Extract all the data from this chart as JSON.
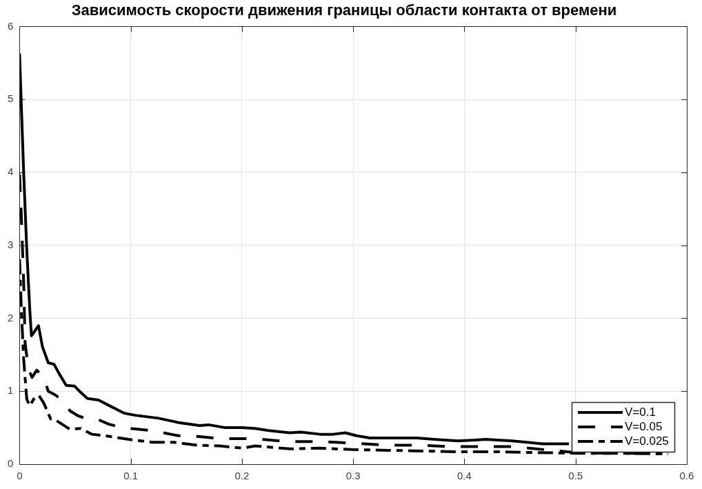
{
  "chart_data": {
    "type": "line",
    "title": "Зависимость скорости движения границы области контакта от времени",
    "xlim": [
      0,
      0.6
    ],
    "xticks": [
      0,
      0.1,
      0.2,
      0.3,
      0.4,
      0.5,
      0.6
    ],
    "ylim": [
      0,
      6
    ],
    "yticks": [
      0,
      1,
      2,
      3,
      4,
      5,
      6
    ],
    "grid": true,
    "legend": "bottom right",
    "series": [
      {
        "name": "V=0.1",
        "color": "#000000",
        "line_style": "solid",
        "x": [
          0,
          0.0037,
          0.0065,
          0.0093,
          0.0107,
          0.0135,
          0.017,
          0.0206,
          0.0258,
          0.031,
          0.036,
          0.042,
          0.0495,
          0.0546,
          0.061,
          0.071,
          0.081,
          0.094,
          0.104,
          0.125,
          0.143,
          0.162,
          0.17,
          0.185,
          0.2,
          0.212,
          0.224,
          0.243,
          0.253,
          0.27,
          0.282,
          0.293,
          0.303,
          0.315,
          0.332,
          0.357,
          0.373,
          0.394,
          0.41,
          0.419,
          0.443,
          0.47,
          0.494
        ],
        "values": [
          5.63,
          4.0,
          2.94,
          2.09,
          1.76,
          1.82,
          1.9,
          1.61,
          1.39,
          1.37,
          1.23,
          1.08,
          1.07,
          0.99,
          0.9,
          0.88,
          0.8,
          0.7,
          0.67,
          0.63,
          0.57,
          0.53,
          0.54,
          0.5,
          0.5,
          0.49,
          0.46,
          0.43,
          0.44,
          0.41,
          0.41,
          0.43,
          0.39,
          0.36,
          0.36,
          0.36,
          0.34,
          0.32,
          0.33,
          0.34,
          0.32,
          0.28,
          0.28
        ]
      },
      {
        "name": "V=0.05",
        "color": "#000000",
        "line_style": "dashed",
        "x": [
          0,
          0.0017,
          0.0037,
          0.005,
          0.008,
          0.0113,
          0.0155,
          0.0217,
          0.0258,
          0.032,
          0.038,
          0.0454,
          0.053,
          0.061,
          0.071,
          0.08,
          0.09,
          0.1,
          0.119,
          0.143,
          0.16,
          0.18,
          0.2,
          0.212,
          0.241,
          0.27,
          0.299,
          0.33,
          0.359,
          0.388,
          0.416,
          0.445,
          0.478,
          0.499,
          0.53,
          0.56,
          0.578
        ],
        "values": [
          3.97,
          3.37,
          2.5,
          1.66,
          1.3,
          1.19,
          1.29,
          1.19,
          1.0,
          0.95,
          0.88,
          0.73,
          0.66,
          0.62,
          0.61,
          0.55,
          0.51,
          0.49,
          0.46,
          0.39,
          0.38,
          0.35,
          0.35,
          0.35,
          0.31,
          0.31,
          0.29,
          0.26,
          0.26,
          0.24,
          0.24,
          0.24,
          0.19,
          0.16,
          0.15,
          0.15,
          0.15
        ]
      },
      {
        "name": "V=0.025",
        "color": "#000000",
        "line_style": "dashdot",
        "x": [
          0,
          0.0017,
          0.0037,
          0.0065,
          0.0093,
          0.0134,
          0.0175,
          0.0217,
          0.028,
          0.032,
          0.04,
          0.045,
          0.055,
          0.065,
          0.077,
          0.098,
          0.119,
          0.139,
          0.16,
          0.18,
          0.2,
          0.212,
          0.243,
          0.27,
          0.299,
          0.332,
          0.365,
          0.394,
          0.43,
          0.46,
          0.5,
          0.54,
          0.583
        ],
        "values": [
          2.81,
          2.09,
          1.44,
          0.89,
          0.8,
          0.91,
          0.94,
          0.84,
          0.62,
          0.61,
          0.53,
          0.48,
          0.49,
          0.41,
          0.39,
          0.34,
          0.3,
          0.3,
          0.26,
          0.25,
          0.22,
          0.25,
          0.21,
          0.22,
          0.2,
          0.19,
          0.18,
          0.17,
          0.17,
          0.16,
          0.15,
          0.15,
          0.14
        ]
      }
    ]
  }
}
